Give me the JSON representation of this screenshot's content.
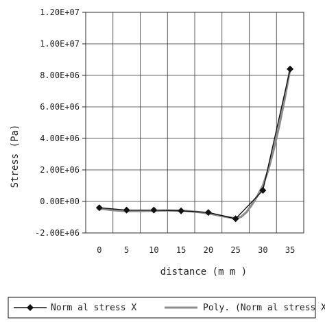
{
  "chart_data": {
    "type": "line",
    "title": "",
    "xlabel": "distance (m m )",
    "ylabel": "Stress (Pa)",
    "x": [
      0,
      5,
      10,
      15,
      20,
      25,
      30,
      35
    ],
    "x_tick_labels": [
      "0",
      "5",
      "10",
      "15",
      "20",
      "25",
      "30",
      "35"
    ],
    "y_tick_labels": [
      "-2.00E+06",
      "0.00E+00",
      "2.00E+06",
      "4.00E+06",
      "6.00E+06",
      "8.00E+06",
      "1.00E+07",
      "1.20E+07"
    ],
    "ylim": [
      -2000000,
      12000000
    ],
    "grid": true,
    "legend_position": "bottom",
    "series": [
      {
        "name": "Norm al stress X",
        "style": "line-diamond",
        "color": "#111111",
        "values": [
          -400000,
          -550000,
          -550000,
          -600000,
          -700000,
          -1100000,
          700000,
          8400000
        ]
      },
      {
        "name": "Poly. (Norm al stress X)",
        "style": "trendline",
        "color": "#8c8c8c",
        "x": [
          0,
          2.5,
          5,
          7.5,
          10,
          12.5,
          15,
          17.5,
          20,
          22.5,
          25,
          26,
          27,
          28,
          29,
          30,
          31,
          32,
          33,
          34,
          35
        ],
        "values": [
          -450000,
          -560000,
          -610000,
          -610000,
          -590000,
          -570000,
          -580000,
          -650000,
          -750000,
          -930000,
          -1080000,
          -980000,
          -680000,
          -200000,
          350000,
          1000000,
          2000000,
          3300000,
          4800000,
          6500000,
          8400000
        ]
      }
    ]
  }
}
